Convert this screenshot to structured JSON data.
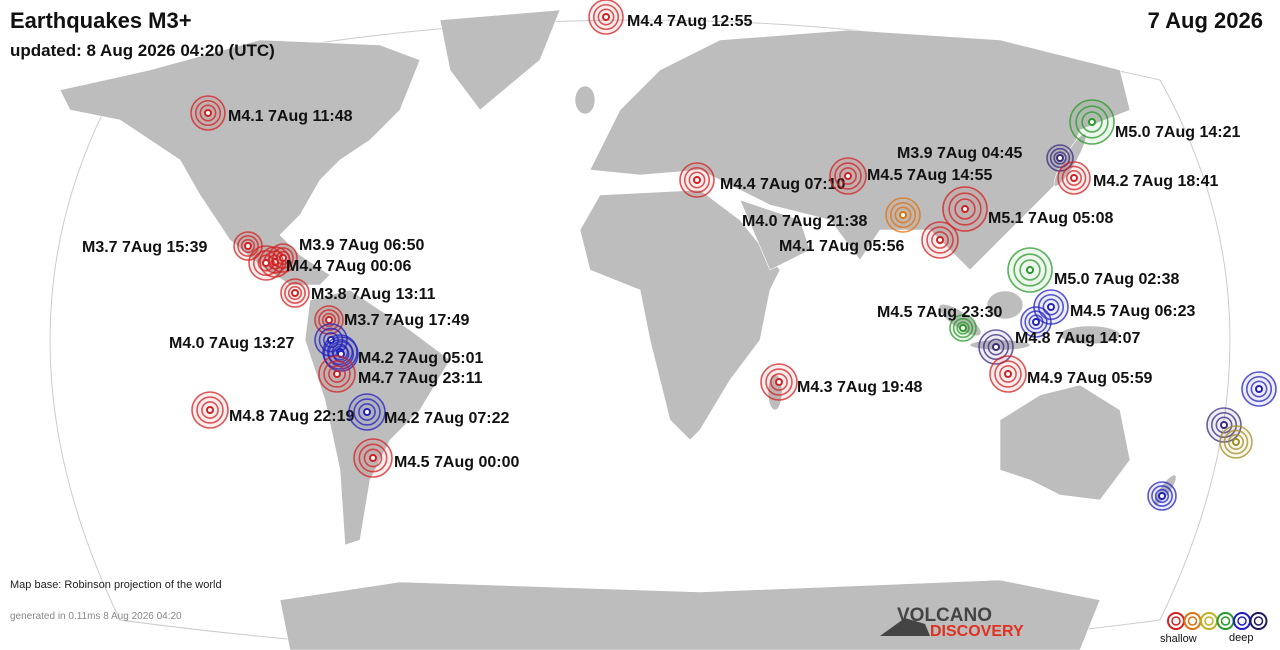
{
  "header": {
    "title": "Earthquakes M3+",
    "updated": "updated:  8 Aug 2026 04:20 (UTC)",
    "date": "7 Aug 2026"
  },
  "quakes": [
    {
      "label": "M4.4 7Aug 12:55"
    },
    {
      "label": "M4.1 7Aug 11:48"
    },
    {
      "label": "M5.0 7Aug 14:21"
    },
    {
      "label": "M3.9 7Aug 04:45"
    },
    {
      "label": "M4.2 7Aug 18:41"
    },
    {
      "label": "M4.4 7Aug 07:10"
    },
    {
      "label": "M4.5 7Aug 14:55"
    },
    {
      "label": "M4.0 7Aug 21:38"
    },
    {
      "label": "M5.1 7Aug 05:08"
    },
    {
      "label": "M4.1 7Aug 05:56"
    },
    {
      "label": "M5.0 7Aug 02:38"
    },
    {
      "label": "M4.5 7Aug 23:30"
    },
    {
      "label": "M4.5 7Aug 06:23"
    },
    {
      "label": "M4.8 7Aug 14:07"
    },
    {
      "label": "M4.9 7Aug 05:59"
    },
    {
      "label": "M4.3 7Aug 19:48"
    },
    {
      "label": "M3.7 7Aug 15:39"
    },
    {
      "label": "M3.9 7Aug 06:50"
    },
    {
      "label": "M4.4 7Aug 00:06"
    },
    {
      "label": "M3.8 7Aug 13:11"
    },
    {
      "label": "M3.7 7Aug 17:49"
    },
    {
      "label": "M4.0 7Aug 13:27"
    },
    {
      "label": "M4.2 7Aug 05:01"
    },
    {
      "label": "M4.7 7Aug 23:11"
    },
    {
      "label": "M4.8 7Aug 22:19"
    },
    {
      "label": "M4.2 7Aug 07:22"
    },
    {
      "label": "M4.5 7Aug 00:00"
    }
  ],
  "footer": {
    "map_base": "Map base: Robinson projection of the world",
    "generated": "generated in 0.11ms 8 Aug 2026 04:20"
  },
  "logo": {
    "line1": "VOLCANO",
    "line2": "DISCOVERY"
  },
  "legend": {
    "shallow": "shallow",
    "deep": "deep"
  }
}
